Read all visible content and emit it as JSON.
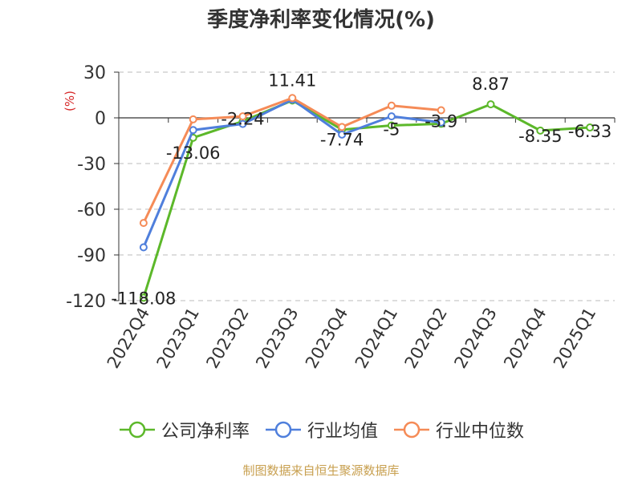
{
  "title": "季度净利率变化情况(%)",
  "unit_label": "(%)",
  "source": "制图数据来自恒生聚源数据库",
  "colors": {
    "company": "#5cb82a",
    "industry_avg": "#4f7fdc",
    "industry_median": "#f58b57",
    "unit": "#d62728",
    "grid": "#bbbbbb",
    "axis": "#333333"
  },
  "chart_data": {
    "type": "line",
    "categories": [
      "2022Q4",
      "2023Q1",
      "2023Q2",
      "2023Q3",
      "2023Q4",
      "2024Q1",
      "2024Q2",
      "2024Q3",
      "2024Q4",
      "2025Q1"
    ],
    "yticks": [
      30,
      0,
      -30,
      -60,
      -90,
      -120
    ],
    "ytick_labels": [
      "30",
      "0",
      "-30",
      "-60",
      "-90",
      "-120"
    ],
    "ylim": [
      -120,
      30
    ],
    "grid": true,
    "legend_position": "bottom",
    "series": [
      {
        "name": "公司净利率",
        "color_key": "company",
        "values": [
          -118.08,
          -13.06,
          -2.24,
          11.41,
          -7.74,
          -5,
          -3.9,
          8.87,
          -8.35,
          -6.33
        ],
        "labels": [
          "-118.08",
          "-13.06",
          "-2.24",
          "11.41",
          "-7.74",
          "-5",
          "-3.9",
          "8.87",
          "-8.35",
          "-6.33"
        ]
      },
      {
        "name": "行业均值",
        "color_key": "industry_avg",
        "values": [
          -85,
          -8,
          -4,
          12,
          -11,
          1,
          -3,
          null,
          null,
          null
        ]
      },
      {
        "name": "行业中位数",
        "color_key": "industry_median",
        "values": [
          -69,
          -1,
          1,
          13,
          -6,
          8,
          5,
          null,
          null,
          null
        ]
      }
    ]
  }
}
